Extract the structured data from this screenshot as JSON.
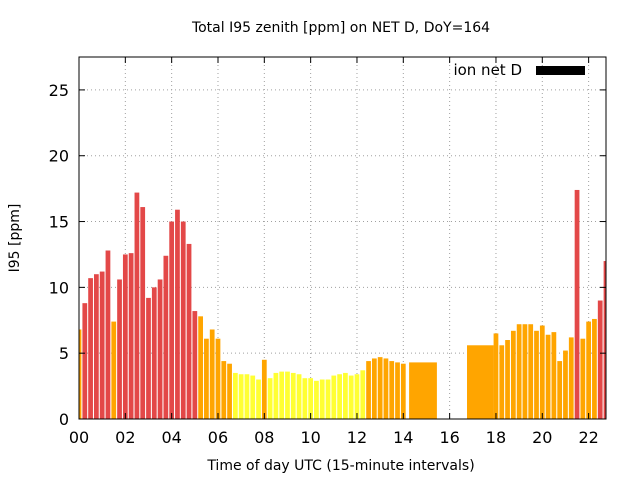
{
  "chart_data": {
    "type": "bar",
    "title": "Total I95 zenith [ppm] on NET D, DoY=164",
    "xlabel": "Time of day UTC (15-minute intervals)",
    "ylabel": "I95 [ppm]",
    "xlim": [
      0,
      22.75
    ],
    "ylim": [
      0,
      27.5
    ],
    "x_ticks": [
      0,
      2,
      4,
      6,
      8,
      10,
      12,
      14,
      16,
      18,
      20,
      22
    ],
    "x_tick_labels": [
      "00",
      "02",
      "04",
      "06",
      "08",
      "10",
      "12",
      "14",
      "16",
      "18",
      "20",
      "22"
    ],
    "y_ticks": [
      0,
      5,
      10,
      15,
      20,
      25
    ],
    "y_tick_labels": [
      "0",
      "5",
      "10",
      "15",
      "20",
      "25"
    ],
    "grid": true,
    "legend": {
      "label": "ion net D",
      "color": "#000000",
      "placement": "top-right"
    },
    "colors": {
      "red": "#e34848",
      "orange": "#ffa500",
      "yellow": "#ffff33"
    },
    "bars": [
      {
        "x": 0.0,
        "y": 6.8,
        "c": "orange"
      },
      {
        "x": 0.25,
        "y": 8.8,
        "c": "red"
      },
      {
        "x": 0.5,
        "y": 10.7,
        "c": "red"
      },
      {
        "x": 0.75,
        "y": 11.0,
        "c": "red"
      },
      {
        "x": 1.0,
        "y": 11.2,
        "c": "red"
      },
      {
        "x": 1.25,
        "y": 12.8,
        "c": "red"
      },
      {
        "x": 1.5,
        "y": 7.4,
        "c": "orange"
      },
      {
        "x": 1.75,
        "y": 10.6,
        "c": "red"
      },
      {
        "x": 2.0,
        "y": 12.5,
        "c": "red"
      },
      {
        "x": 2.25,
        "y": 12.6,
        "c": "red"
      },
      {
        "x": 2.5,
        "y": 17.2,
        "c": "red"
      },
      {
        "x": 2.75,
        "y": 16.1,
        "c": "red"
      },
      {
        "x": 3.0,
        "y": 9.2,
        "c": "red"
      },
      {
        "x": 3.25,
        "y": 10.0,
        "c": "red"
      },
      {
        "x": 3.5,
        "y": 10.6,
        "c": "red"
      },
      {
        "x": 3.75,
        "y": 12.4,
        "c": "red"
      },
      {
        "x": 4.0,
        "y": 15.0,
        "c": "red"
      },
      {
        "x": 4.25,
        "y": 15.9,
        "c": "red"
      },
      {
        "x": 4.5,
        "y": 15.0,
        "c": "red"
      },
      {
        "x": 4.75,
        "y": 13.3,
        "c": "red"
      },
      {
        "x": 5.0,
        "y": 8.2,
        "c": "red"
      },
      {
        "x": 5.25,
        "y": 7.8,
        "c": "orange"
      },
      {
        "x": 5.5,
        "y": 6.1,
        "c": "orange"
      },
      {
        "x": 5.75,
        "y": 6.8,
        "c": "orange"
      },
      {
        "x": 6.0,
        "y": 6.1,
        "c": "orange"
      },
      {
        "x": 6.25,
        "y": 4.4,
        "c": "orange"
      },
      {
        "x": 6.5,
        "y": 4.2,
        "c": "orange"
      },
      {
        "x": 6.75,
        "y": 3.5,
        "c": "yellow"
      },
      {
        "x": 7.0,
        "y": 3.4,
        "c": "yellow"
      },
      {
        "x": 7.25,
        "y": 3.4,
        "c": "yellow"
      },
      {
        "x": 7.5,
        "y": 3.3,
        "c": "yellow"
      },
      {
        "x": 7.75,
        "y": 3.0,
        "c": "yellow"
      },
      {
        "x": 8.0,
        "y": 4.5,
        "c": "orange"
      },
      {
        "x": 8.25,
        "y": 3.1,
        "c": "yellow"
      },
      {
        "x": 8.5,
        "y": 3.5,
        "c": "yellow"
      },
      {
        "x": 8.75,
        "y": 3.6,
        "c": "yellow"
      },
      {
        "x": 9.0,
        "y": 3.6,
        "c": "yellow"
      },
      {
        "x": 9.25,
        "y": 3.5,
        "c": "yellow"
      },
      {
        "x": 9.5,
        "y": 3.4,
        "c": "yellow"
      },
      {
        "x": 9.75,
        "y": 3.1,
        "c": "yellow"
      },
      {
        "x": 10.0,
        "y": 3.1,
        "c": "yellow"
      },
      {
        "x": 10.25,
        "y": 2.9,
        "c": "yellow"
      },
      {
        "x": 10.5,
        "y": 3.0,
        "c": "yellow"
      },
      {
        "x": 10.75,
        "y": 3.0,
        "c": "yellow"
      },
      {
        "x": 11.0,
        "y": 3.3,
        "c": "yellow"
      },
      {
        "x": 11.25,
        "y": 3.4,
        "c": "yellow"
      },
      {
        "x": 11.5,
        "y": 3.5,
        "c": "yellow"
      },
      {
        "x": 11.75,
        "y": 3.3,
        "c": "yellow"
      },
      {
        "x": 12.0,
        "y": 3.4,
        "c": "yellow"
      },
      {
        "x": 12.25,
        "y": 3.7,
        "c": "yellow"
      },
      {
        "x": 12.5,
        "y": 4.4,
        "c": "orange"
      },
      {
        "x": 12.75,
        "y": 4.6,
        "c": "orange"
      },
      {
        "x": 13.0,
        "y": 4.7,
        "c": "orange"
      },
      {
        "x": 13.25,
        "y": 4.6,
        "c": "orange"
      },
      {
        "x": 13.5,
        "y": 4.4,
        "c": "orange"
      },
      {
        "x": 13.75,
        "y": 4.3,
        "c": "orange"
      },
      {
        "x": 14.0,
        "y": 4.2,
        "c": "orange"
      },
      {
        "x": 14.25,
        "y": 4.3,
        "c": "orange",
        "w": 1.2
      },
      {
        "x": 16.75,
        "y": 5.6,
        "c": "orange",
        "w": 1.15
      },
      {
        "x": 18.0,
        "y": 6.5,
        "c": "orange"
      },
      {
        "x": 18.25,
        "y": 5.6,
        "c": "orange"
      },
      {
        "x": 18.5,
        "y": 6.0,
        "c": "orange"
      },
      {
        "x": 18.75,
        "y": 6.7,
        "c": "orange"
      },
      {
        "x": 19.0,
        "y": 7.2,
        "c": "orange"
      },
      {
        "x": 19.25,
        "y": 7.2,
        "c": "orange"
      },
      {
        "x": 19.5,
        "y": 7.2,
        "c": "orange"
      },
      {
        "x": 19.75,
        "y": 6.7,
        "c": "orange"
      },
      {
        "x": 20.0,
        "y": 7.1,
        "c": "orange"
      },
      {
        "x": 20.25,
        "y": 6.4,
        "c": "orange"
      },
      {
        "x": 20.5,
        "y": 6.6,
        "c": "orange"
      },
      {
        "x": 20.75,
        "y": 4.4,
        "c": "orange"
      },
      {
        "x": 21.0,
        "y": 5.2,
        "c": "orange"
      },
      {
        "x": 21.25,
        "y": 6.2,
        "c": "orange"
      },
      {
        "x": 21.5,
        "y": 17.4,
        "c": "red"
      },
      {
        "x": 21.75,
        "y": 6.1,
        "c": "orange"
      },
      {
        "x": 22.0,
        "y": 7.4,
        "c": "orange"
      },
      {
        "x": 22.25,
        "y": 7.6,
        "c": "orange"
      },
      {
        "x": 22.5,
        "y": 9.0,
        "c": "red"
      },
      {
        "x": 22.75,
        "y": 12.0,
        "c": "red"
      }
    ]
  }
}
